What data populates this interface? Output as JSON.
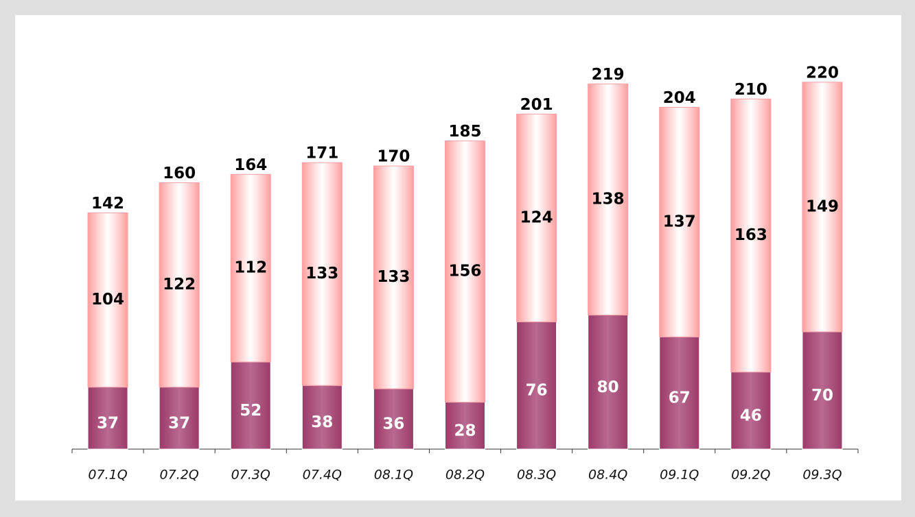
{
  "chart_data": {
    "type": "stacked_bar",
    "categories": [
      "07.1Q",
      "07.2Q",
      "07.3Q",
      "07.4Q",
      "08.1Q",
      "08.2Q",
      "08.3Q",
      "08.4Q",
      "09.1Q",
      "09.2Q",
      "09.3Q"
    ],
    "series": [
      {
        "color": "#9c3a68",
        "values": [
          37,
          37,
          52,
          38,
          36,
          28,
          76,
          80,
          67,
          46,
          70
        ]
      },
      {
        "color": "#ff9d9d",
        "values": [
          104,
          122,
          112,
          133,
          133,
          156,
          124,
          138,
          137,
          163,
          149
        ]
      }
    ],
    "totals": [
      142,
      160,
      164,
      171,
      170,
      185,
      201,
      219,
      204,
      210,
      220
    ],
    "ylim": [
      0,
      230
    ]
  }
}
